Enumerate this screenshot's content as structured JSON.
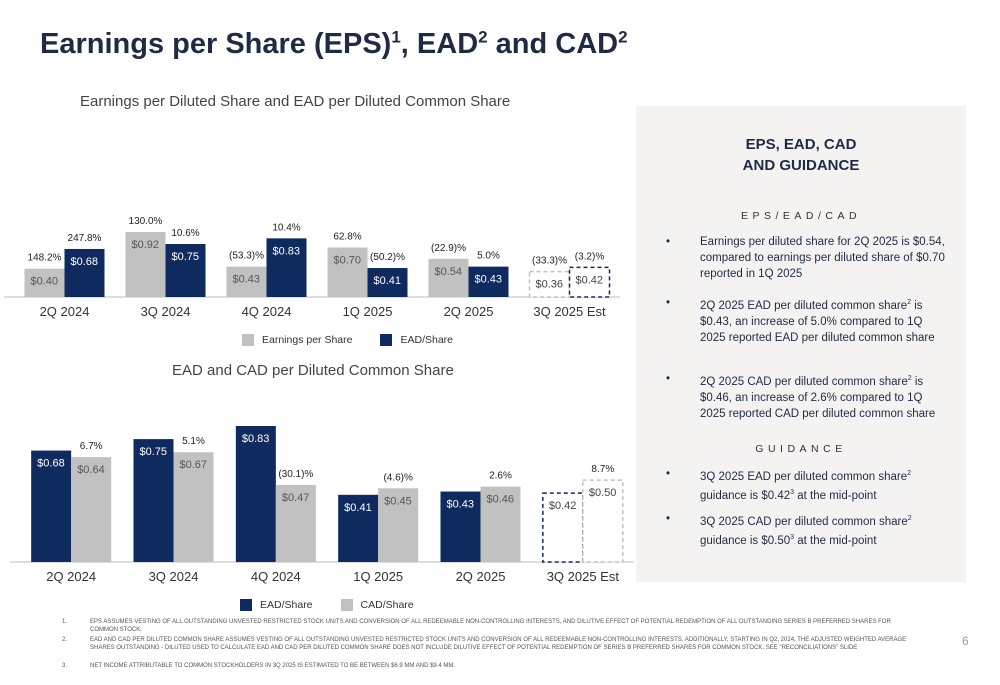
{
  "page": {
    "title_main": "Earnings per Share (EPS)",
    "title_sup1": "1",
    "title_mid": ", EAD",
    "title_sup2": "2",
    "title_and": " and CAD",
    "title_sup3": "2",
    "page_number": "6"
  },
  "chart_data": [
    {
      "type": "bar",
      "title": "Earnings per Diluted Share and EAD per Diluted Common Share",
      "categories": [
        "2Q 2024",
        "3Q 2024",
        "4Q 2024",
        "1Q 2025",
        "2Q 2025",
        "3Q 2025 Est"
      ],
      "series": [
        {
          "name": "Earnings per Share",
          "values": [
            0.4,
            0.92,
            0.43,
            0.7,
            0.54,
            0.36
          ],
          "labels": [
            "$0.40",
            "$0.92",
            "$0.43",
            "$0.70",
            "$0.54",
            "$0.36"
          ],
          "changes": [
            "148.2%",
            "130.0%",
            "(53.3)%",
            "62.8%",
            "(22.9)%",
            "(33.3)%"
          ],
          "color": "#c1c1c1"
        },
        {
          "name": "EAD/Share",
          "values": [
            0.68,
            0.75,
            0.83,
            0.41,
            0.43,
            0.42
          ],
          "labels": [
            "$0.68",
            "$0.75",
            "$0.83",
            "$0.41",
            "$0.43",
            "$0.42"
          ],
          "changes": [
            "247.8%",
            "10.6%",
            "10.4%",
            "(50.2)%",
            "5.0%",
            "(3.2)%"
          ],
          "color": "#0f2a5f"
        }
      ],
      "estimate_index": 5,
      "ylim": [
        0,
        1.0
      ],
      "legend_position": "bottom"
    },
    {
      "type": "bar",
      "title": "EAD and CAD per Diluted Common Share",
      "categories": [
        "2Q 2024",
        "3Q 2024",
        "4Q 2024",
        "1Q 2025",
        "2Q 2025",
        "3Q 2025 Est"
      ],
      "series": [
        {
          "name": "EAD/Share",
          "values": [
            0.68,
            0.75,
            0.83,
            0.41,
            0.43,
            0.42
          ],
          "labels": [
            "$0.68",
            "$0.75",
            "$0.83",
            "$0.41",
            "$0.43",
            "$0.42"
          ],
          "color": "#0f2a5f"
        },
        {
          "name": "CAD/Share",
          "values": [
            0.64,
            0.67,
            0.47,
            0.45,
            0.46,
            0.5
          ],
          "labels": [
            "$0.64",
            "$0.67",
            "$0.47",
            "$0.45",
            "$0.46",
            "$0.50"
          ],
          "changes": [
            "6.7%",
            "5.1%",
            "(30.1)%",
            "(4.6)%",
            "2.6%",
            "8.7%"
          ],
          "color": "#c1c1c1"
        }
      ],
      "estimate_index": 5,
      "ylim": [
        0,
        0.9
      ],
      "legend_position": "bottom"
    }
  ],
  "panel": {
    "title_line1": "EPS, EAD, CAD",
    "title_line2": "AND GUIDANCE",
    "section1": "EPS/EAD/CAD",
    "section2": "GUIDANCE",
    "bullet1": "Earnings per diluted share for 2Q 2025 is $0.54, compared to earnings per diluted share of $0.70 reported in 1Q 2025",
    "bullet2_a": "2Q 2025 EAD per diluted common share",
    "bullet2_sup": "2",
    "bullet2_b": " is $0.43, an increase of  5.0% compared to 1Q 2025 reported EAD per diluted common share",
    "bullet3_a": "2Q 2025 CAD per diluted common share",
    "bullet3_sup": "2",
    "bullet3_b": " is $0.46, an increase of 2.6% compared to 1Q 2025 reported CAD per diluted common share",
    "bullet4_a": "3Q 2025 EAD per diluted common share",
    "bullet4_sup": "2",
    "bullet4_b": " guidance is $0.42",
    "bullet4_sup2": "3",
    "bullet4_c": " at the mid-point",
    "bullet5_a": "3Q 2025 CAD per diluted common share",
    "bullet5_sup": "2",
    "bullet5_b": " guidance is $0.50",
    "bullet5_sup2": "3",
    "bullet5_c": " at the mid-point",
    "bullet_char": "•"
  },
  "footnotes": [
    {
      "num": "1.",
      "text": "EPS assumes vesting of all outstanding unvested restricted stock units and conversion of all redeemable non-controlling interests, and dilutive effect of potential redemption of all outstanding Series B preferred shares for common stock."
    },
    {
      "num": "2.",
      "text": "EAD and CAD per diluted common share assumes vesting of all outstanding unvested restricted stock units and conversion of all redeemable non-controlling interests. Additionally, starting in Q2, 2024, the adjusted weighted average shares outstanding - diluted used to calculate EAD and CAD per diluted common share does not include dilutive effect of potential redemption of Series B preferred shares for common stock. See \"Reconciliations\" slide"
    },
    {
      "num": "3.",
      "text": "Net income attributable to common stockholders in 3Q 2025 is estimated to be between $6.9 MM and $9.4 MM."
    }
  ]
}
